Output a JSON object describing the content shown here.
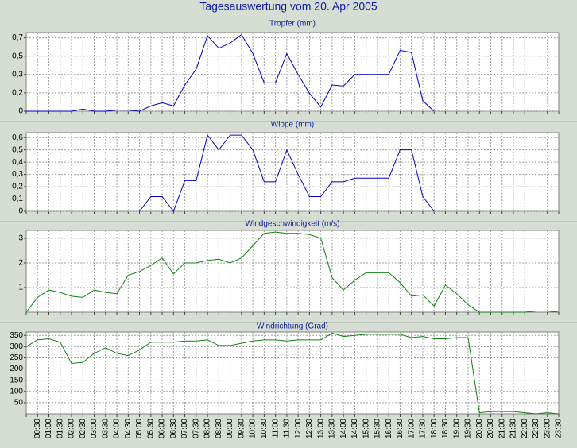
{
  "title": "Tagesauswertung vom 20. Apr 2005",
  "chart_data": [
    {
      "type": "line",
      "title": "Tropfer (mm)",
      "color": "#0000c0",
      "ylim": [
        0,
        0.75
      ],
      "yticks": [
        0,
        {
          "value": 0.175,
          "label": "0,2"
        },
        {
          "value": 0.35,
          "label": "0,3"
        },
        {
          "value": 0.525,
          "label": "0,5"
        },
        {
          "value": 0.7,
          "label": "0,7"
        }
      ],
      "grid": true,
      "values": [
        0,
        0,
        0,
        0,
        0,
        0.02,
        0,
        0,
        0.01,
        0.01,
        0,
        0.05,
        0.08,
        0.05,
        0.25,
        0.4,
        0.72,
        0.6,
        0.65,
        0.73,
        0.55,
        0.27,
        0.27,
        0.55,
        0.35,
        0.17,
        0.04,
        0.25,
        0.24,
        0.35,
        0.35,
        0.35,
        0.35,
        0.58,
        0.56,
        0.1,
        0,
        null,
        null,
        null,
        null,
        null,
        null,
        null,
        null,
        null,
        null,
        null
      ]
    },
    {
      "type": "line",
      "title": "Wippe (mm)",
      "color": "#0000c0",
      "ylim": [
        0,
        0.64
      ],
      "yticks": [
        0,
        {
          "value": 0.1,
          "label": "0,1"
        },
        {
          "value": 0.2,
          "label": "0,2"
        },
        {
          "value": 0.3,
          "label": "0,3"
        },
        {
          "value": 0.4,
          "label": "0,4"
        },
        {
          "value": 0.5,
          "label": "0,5"
        },
        {
          "value": 0.6,
          "label": "0,6"
        }
      ],
      "grid": true,
      "values": [
        null,
        null,
        null,
        null,
        null,
        null,
        null,
        null,
        null,
        null,
        0,
        0.12,
        0.12,
        0,
        0.25,
        0.25,
        0.62,
        0.5,
        0.62,
        0.62,
        0.5,
        0.24,
        0.24,
        0.5,
        0.3,
        0.12,
        0.12,
        0.24,
        0.24,
        0.27,
        0.27,
        0.27,
        0.27,
        0.5,
        0.5,
        0.12,
        0,
        null,
        null,
        null,
        null,
        null,
        null,
        null,
        null,
        null,
        null,
        null
      ]
    },
    {
      "type": "line",
      "title": "Windgeschwindigkeit (m/s)",
      "color": "#108010",
      "ylim": [
        0,
        3.32
      ],
      "yticks": [
        1,
        2,
        3
      ],
      "grid": true,
      "values": [
        0,
        0.6,
        0.9,
        0.8,
        0.65,
        0.6,
        0.9,
        0.8,
        0.75,
        1.5,
        1.65,
        1.9,
        2.2,
        1.55,
        2.0,
        2.0,
        2.1,
        2.15,
        2.0,
        2.2,
        2.7,
        3.2,
        3.25,
        3.2,
        3.2,
        3.15,
        3.0,
        1.4,
        0.9,
        1.3,
        1.6,
        1.6,
        1.6,
        1.2,
        0.65,
        0.7,
        0.25,
        1.1,
        0.75,
        0.3,
        0,
        0,
        0,
        0,
        0,
        0.05,
        0.05,
        0
      ]
    },
    {
      "type": "line",
      "title": "Windrichtung (Grad)",
      "color": "#108010",
      "ylim": [
        0,
        365
      ],
      "yticks": [
        50,
        100,
        150,
        200,
        250,
        300,
        350
      ],
      "grid": true,
      "values": [
        300,
        330,
        335,
        320,
        225,
        230,
        270,
        295,
        270,
        260,
        285,
        320,
        320,
        320,
        325,
        325,
        330,
        305,
        305,
        315,
        325,
        330,
        330,
        325,
        330,
        330,
        330,
        360,
        345,
        350,
        355,
        355,
        355,
        355,
        340,
        345,
        335,
        335,
        340,
        340,
        5,
        10,
        10,
        10,
        5,
        0,
        5,
        0
      ],
      "categories": [
        null,
        "00:30",
        "01:00",
        "01:30",
        "02:00",
        "02:30",
        "03:00",
        "03:30",
        "04:00",
        "04:30",
        "05:00",
        "05:30",
        "06:00",
        "06:30",
        "07:00",
        "07:30",
        "08:00",
        "08:30",
        "09:00",
        "09:30",
        "10:00",
        "10:30",
        "11:00",
        "11:30",
        "12:00",
        "12:30",
        "13:00",
        "13:30",
        "14:00",
        "14:30",
        "15:00",
        "15:30",
        "16:00",
        "16:30",
        "17:00",
        "17:30",
        "18:00",
        "18:30",
        "19:00",
        "19:30",
        "20:00",
        "20:30",
        "21:00",
        "21:30",
        "22:00",
        "22:30",
        "23:00",
        "23:30"
      ]
    }
  ]
}
